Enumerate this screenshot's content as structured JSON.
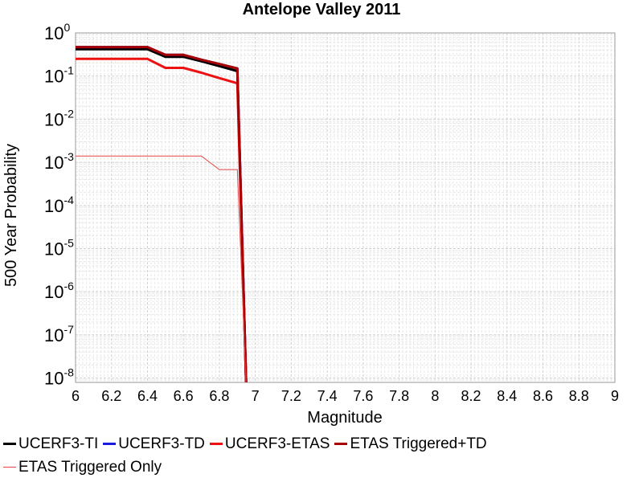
{
  "chart_data": {
    "type": "line",
    "title": "Antelope Valley 2011",
    "xlabel": "Magnitude",
    "ylabel": "500 Year Probability",
    "xlim": [
      6,
      9
    ],
    "ylim_exp": [
      -8.1,
      0
    ],
    "yscale": "log",
    "grid": true,
    "legend_position": "bottom",
    "x_ticks": [
      "6",
      "6.2",
      "6.4",
      "6.6",
      "6.8",
      "7",
      "7.2",
      "7.4",
      "7.6",
      "7.8",
      "8",
      "8.2",
      "8.4",
      "8.6",
      "8.8",
      "9"
    ],
    "y_ticks": [
      {
        "base": "10",
        "exp": "0"
      },
      {
        "base": "10",
        "exp": "-1"
      },
      {
        "base": "10",
        "exp": "-2"
      },
      {
        "base": "10",
        "exp": "-3"
      },
      {
        "base": "10",
        "exp": "-4"
      },
      {
        "base": "10",
        "exp": "-5"
      },
      {
        "base": "10",
        "exp": "-6"
      },
      {
        "base": "10",
        "exp": "-7"
      },
      {
        "base": "10",
        "exp": "-8"
      }
    ],
    "series": [
      {
        "name": "UCERF3-TI",
        "color": "#000000",
        "width": 3,
        "x": [
          6.0,
          6.4,
          6.5,
          6.6,
          6.7,
          6.8,
          6.9,
          6.95
        ],
        "y": [
          0.42,
          0.42,
          0.28,
          0.28,
          0.22,
          0.17,
          0.13,
          1e-09
        ]
      },
      {
        "name": "UCERF3-TD",
        "color": "#1a1adf",
        "width": 3,
        "x": [
          6.0,
          6.4,
          6.5,
          6.6,
          6.7,
          6.8,
          6.9,
          6.95
        ],
        "y": [
          0.47,
          0.47,
          0.31,
          0.31,
          0.24,
          0.19,
          0.15,
          1e-09
        ]
      },
      {
        "name": "UCERF3-ETAS",
        "color": "#ee1111",
        "width": 3,
        "x": [
          6.0,
          6.4,
          6.5,
          6.6,
          6.7,
          6.8,
          6.9,
          6.95
        ],
        "y": [
          0.25,
          0.25,
          0.155,
          0.155,
          0.12,
          0.09,
          0.068,
          1e-09
        ]
      },
      {
        "name": "ETAS Triggered+TD",
        "color": "#a80000",
        "width": 3,
        "x": [
          6.0,
          6.4,
          6.5,
          6.6,
          6.7,
          6.8,
          6.9,
          6.95
        ],
        "y": [
          0.47,
          0.47,
          0.31,
          0.31,
          0.24,
          0.19,
          0.15,
          1e-09
        ]
      },
      {
        "name": "ETAS Triggered Only",
        "color": "#e84545",
        "width": 1,
        "x": [
          6.0,
          6.7,
          6.8,
          6.9,
          6.95
        ],
        "y": [
          0.0014,
          0.0014,
          0.00068,
          0.00068,
          1e-09
        ]
      }
    ]
  }
}
